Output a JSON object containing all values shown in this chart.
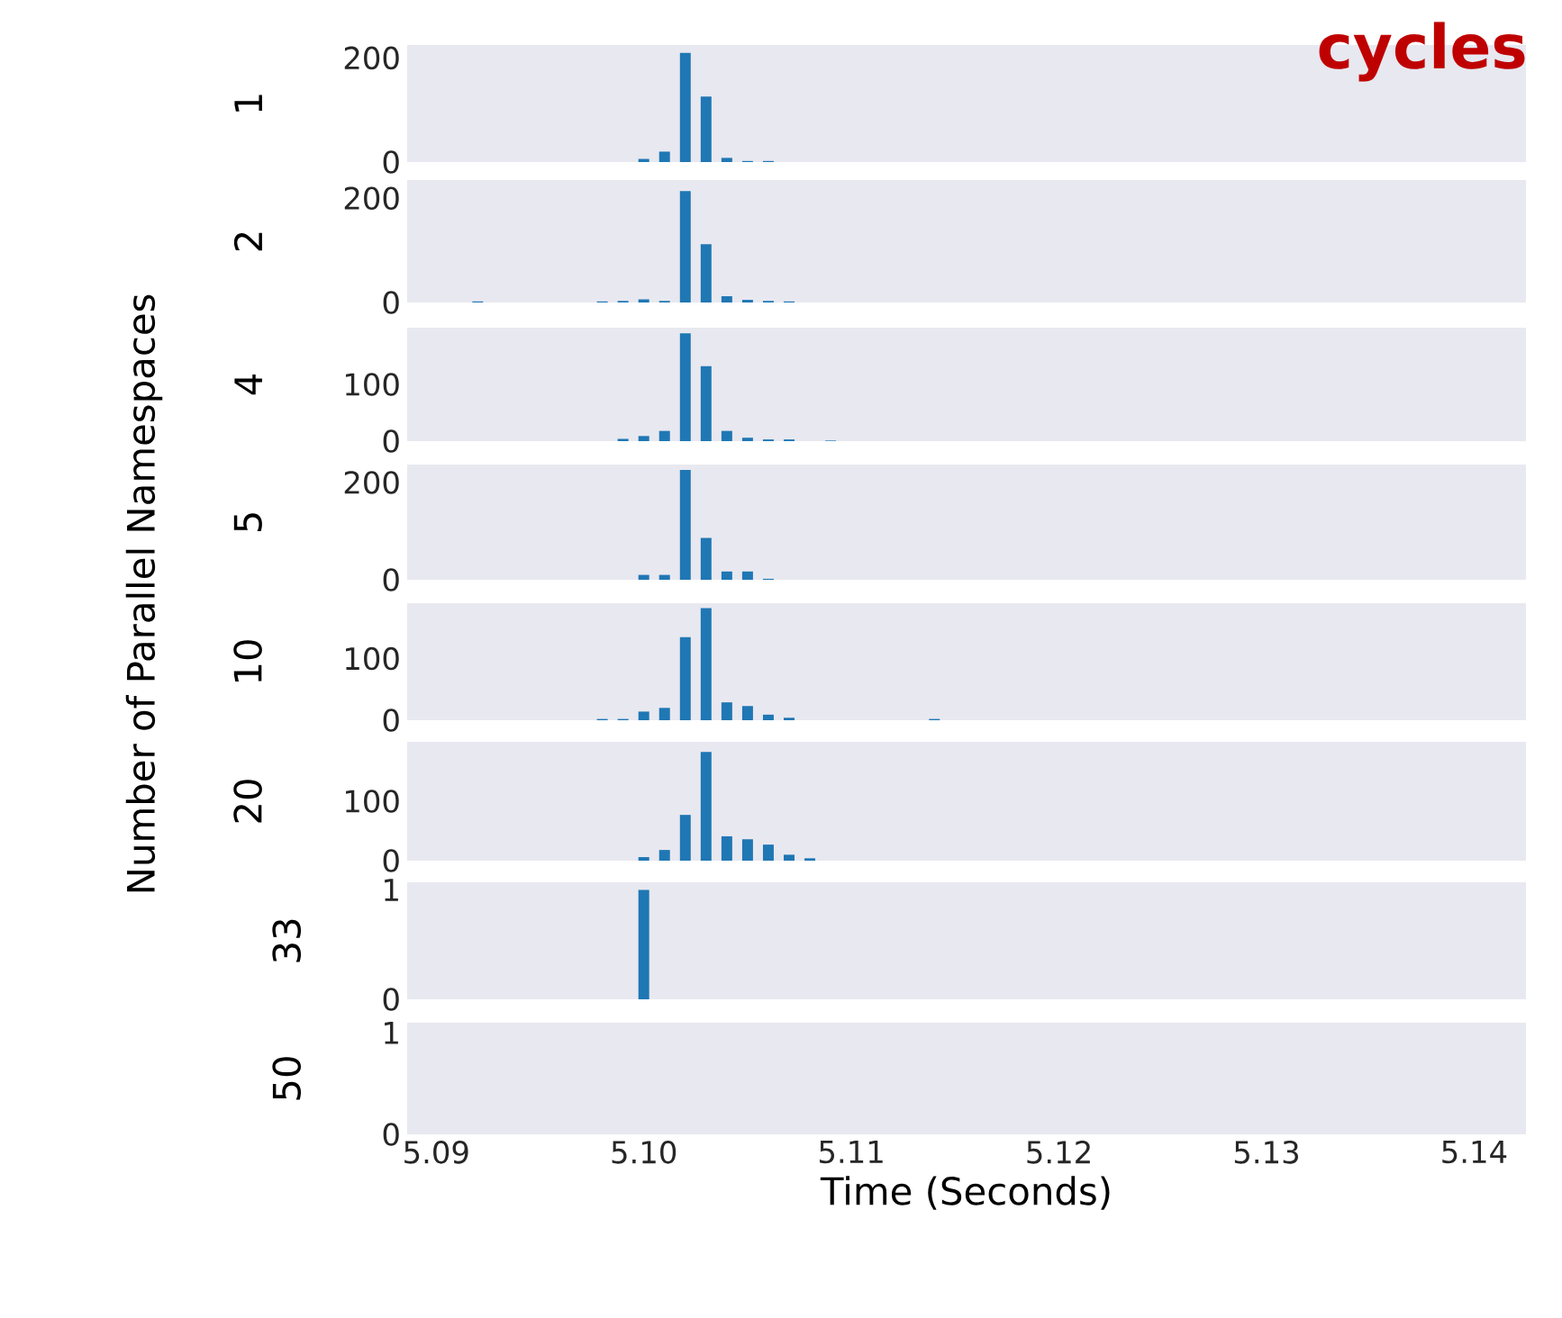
{
  "chart_data": [
    {
      "type": "bar",
      "title": "cycles",
      "ylabel": "1",
      "annotations": [
        "Number of Parallel Namespaces"
      ],
      "color": "#1f77b4",
      "x": [
        5.1,
        5.101,
        5.102,
        5.103,
        5.104,
        5.105,
        5.106
      ],
      "values": [
        6,
        20,
        210,
        126,
        8,
        2,
        2
      ],
      "xlim": [
        5.0886,
        5.1425
      ],
      "ylim": [
        0,
        225
      ],
      "yticks": [
        0,
        200
      ],
      "tick_labels": "y"
    },
    {
      "type": "bar",
      "ylabel": "2",
      "color": "#1f77b4",
      "x": [
        5.092,
        5.098,
        5.099,
        5.1,
        5.101,
        5.102,
        5.103,
        5.104,
        5.105,
        5.106,
        5.107
      ],
      "values": [
        2,
        2,
        3,
        6,
        3,
        214,
        112,
        12,
        5,
        3,
        2
      ],
      "xlim": [
        5.0886,
        5.1425
      ],
      "ylim": [
        0,
        235
      ],
      "yticks": [
        0,
        200
      ],
      "tick_labels": "y"
    },
    {
      "type": "bar",
      "ylabel": "4",
      "color": "#1f77b4",
      "x": [
        5.099,
        5.1,
        5.101,
        5.102,
        5.103,
        5.104,
        5.105,
        5.106,
        5.107,
        5.109
      ],
      "values": [
        4,
        9,
        18,
        190,
        132,
        18,
        6,
        3,
        3,
        1
      ],
      "xlim": [
        5.0886,
        5.1425
      ],
      "ylim": [
        0,
        200
      ],
      "yticks": [
        0,
        100
      ],
      "tick_labels": "y"
    },
    {
      "type": "bar",
      "ylabel": "5",
      "color": "#1f77b4",
      "x": [
        5.1,
        5.101,
        5.102,
        5.103,
        5.104,
        5.105,
        5.106
      ],
      "values": [
        10,
        10,
        226,
        86,
        17,
        17,
        2
      ],
      "xlim": [
        5.0886,
        5.1425
      ],
      "ylim": [
        0,
        237
      ],
      "yticks": [
        0,
        200
      ],
      "tick_labels": "y"
    },
    {
      "type": "bar",
      "ylabel": "10",
      "color": "#1f77b4",
      "x": [
        5.098,
        5.099,
        5.1,
        5.101,
        5.102,
        5.103,
        5.104,
        5.105,
        5.106,
        5.107,
        5.114
      ],
      "values": [
        2,
        2,
        14,
        20,
        135,
        182,
        29,
        23,
        9,
        4,
        2
      ],
      "xlim": [
        5.0886,
        5.1425
      ],
      "ylim": [
        0,
        190
      ],
      "yticks": [
        0,
        100
      ],
      "tick_labels": "y"
    },
    {
      "type": "bar",
      "ylabel": "20",
      "color": "#1f77b4",
      "x": [
        5.1,
        5.101,
        5.102,
        5.103,
        5.104,
        5.105,
        5.106,
        5.107,
        5.108
      ],
      "values": [
        6,
        18,
        77,
        183,
        41,
        36,
        27,
        10,
        4
      ],
      "xlim": [
        5.0886,
        5.1425
      ],
      "ylim": [
        0,
        200
      ],
      "yticks": [
        0,
        100
      ],
      "tick_labels": "y"
    },
    {
      "type": "bar",
      "ylabel": "33",
      "color": "#1f77b4",
      "x": [
        5.1
      ],
      "values": [
        1
      ],
      "xlim": [
        5.0886,
        5.1425
      ],
      "ylim": [
        0,
        1.07
      ],
      "yticks": [
        0,
        1
      ],
      "tick_labels": "y"
    },
    {
      "type": "bar",
      "ylabel": "50",
      "xlabel": "Time (Seconds)",
      "color": "#1f77b4",
      "xlim": [
        5.0886,
        5.1425
      ],
      "ylim": [
        0,
        1.1
      ],
      "yticks": [
        0,
        1
      ],
      "xticks": [
        {
          "value": 5.09,
          "label": "5.09"
        },
        {
          "value": 5.1,
          "label": "5.10"
        },
        {
          "value": 5.11,
          "label": "5.11"
        },
        {
          "value": 5.12,
          "label": "5.12"
        },
        {
          "value": 5.13,
          "label": "5.13"
        },
        {
          "value": 5.14,
          "label": "5.14"
        }
      ]
    }
  ]
}
